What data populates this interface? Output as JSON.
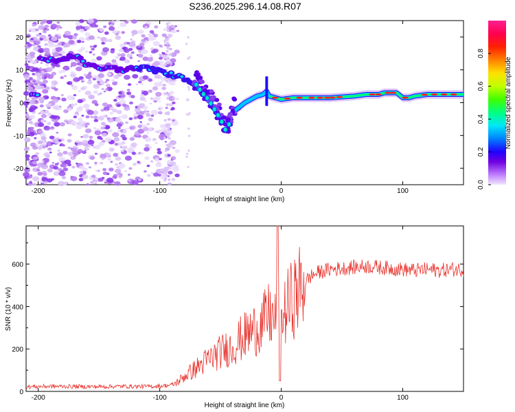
{
  "title": "S236.2025.296.14.08.R07",
  "chart_data": [
    {
      "type": "heatmap",
      "xlabel": "Height of straight line (km)",
      "ylabel": "Frequency (Hz)",
      "xlim": [
        -210,
        150
      ],
      "ylim": [
        -25,
        25
      ],
      "xticks": [
        -200,
        -100,
        0,
        100
      ],
      "yticks": [
        20,
        10,
        0,
        -10,
        -20
      ],
      "colorbar": {
        "label": "Normalized spectral amplitude",
        "range": [
          0,
          1
        ],
        "ticks": [
          0.0,
          0.2,
          0.4,
          0.6,
          0.8
        ],
        "colors": [
          "#e8d8f8",
          "#c080ff",
          "#7000e0",
          "#2000ff",
          "#0070ff",
          "#00e0ff",
          "#00ff80",
          "#40ff00",
          "#c0ff00",
          "#ffe000",
          "#ff8000",
          "#ff2000",
          "#ff0060",
          "#ff2090"
        ]
      },
      "signal_trace": {
        "x": [
          -200,
          -190,
          -180,
          -170,
          -160,
          -150,
          -140,
          -130,
          -120,
          -110,
          -100,
          -90,
          -80,
          -75,
          -70,
          -65,
          -60,
          -55,
          -50,
          -45,
          -40,
          -35,
          -30,
          -25,
          -20,
          -15,
          -12,
          -10,
          -5,
          0,
          10,
          20,
          40,
          60,
          70,
          80,
          85,
          90,
          95,
          100,
          105,
          110,
          120,
          130,
          140,
          150
        ],
        "y": [
          13,
          13,
          13,
          14.5,
          11.5,
          10.5,
          10.5,
          10,
          10.5,
          10.5,
          9.5,
          8.5,
          7.5,
          6.5,
          5.5,
          3,
          1,
          -2,
          -5,
          -9,
          -3,
          -1.5,
          0,
          1,
          2,
          2.5,
          3.5,
          2,
          1.5,
          1,
          1.5,
          1.5,
          1.5,
          2,
          2.5,
          2.5,
          3,
          3,
          3,
          1.5,
          1.5,
          2,
          2.5,
          2.5,
          2.5,
          2.5
        ]
      }
    },
    {
      "type": "line",
      "xlabel": "Height of straight line (km)",
      "ylabel": "SNR (10 * v/v)",
      "xlim": [
        -210,
        150
      ],
      "ylim": [
        0,
        780
      ],
      "xticks": [
        -200,
        -100,
        0,
        100
      ],
      "yticks": [
        0,
        200,
        400,
        600
      ],
      "series": [
        {
          "name": "SNR",
          "color": "#e8302a",
          "x": [
            -210,
            -190,
            -170,
            -150,
            -130,
            -110,
            -100,
            -90,
            -85,
            -80,
            -70,
            -60,
            -50,
            -45,
            -40,
            -35,
            -30,
            -25,
            -20,
            -15,
            -10,
            -5,
            -2,
            0,
            5,
            10,
            15,
            20,
            25,
            30,
            40,
            50,
            60,
            70,
            80,
            90,
            100,
            110,
            120,
            130,
            140,
            150
          ],
          "values": [
            22,
            24,
            23,
            22,
            24,
            23,
            25,
            30,
            45,
            70,
            110,
            150,
            185,
            200,
            210,
            240,
            260,
            280,
            300,
            320,
            360,
            330,
            300,
            330,
            400,
            440,
            480,
            520,
            545,
            560,
            575,
            580,
            585,
            590,
            585,
            580,
            575,
            570,
            575,
            570,
            575,
            575
          ],
          "peaks": [
            {
              "x": -3,
              "value": 780
            },
            {
              "x": -1,
              "value": 50
            }
          ]
        }
      ]
    }
  ]
}
